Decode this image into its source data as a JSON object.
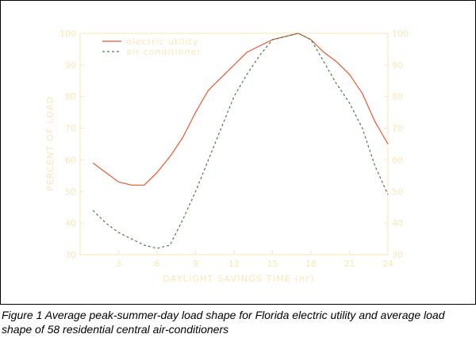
{
  "figure_caption": "Figure 1   Average peak-summer-day load shape for Florida electric utility and average load shape of 58 residential central air-conditioners",
  "chart_data": {
    "type": "line",
    "title": "",
    "xlabel": "DAYLIGHT SAVINGS TIME (hr)",
    "ylabel": "PERCENT OF LOAD",
    "xlim": [
      0,
      24
    ],
    "ylim": [
      30,
      100
    ],
    "x_ticks": [
      3,
      6,
      9,
      12,
      15,
      18,
      21,
      24
    ],
    "y_ticks": [
      30,
      40,
      50,
      60,
      70,
      80,
      90,
      100
    ],
    "legend_position": "top-left",
    "axis_color": "#fae6b4",
    "grid": false,
    "series": [
      {
        "name": "electric utility",
        "style": "solid",
        "color": "#e8572e",
        "x": [
          1,
          2,
          3,
          4,
          5,
          6,
          7,
          8,
          9,
          10,
          11,
          12,
          13,
          14,
          15,
          16,
          17,
          18,
          19,
          20,
          21,
          22,
          23,
          24
        ],
        "values": [
          59,
          56,
          53,
          52,
          52,
          56,
          61,
          67,
          75,
          82,
          86,
          90,
          94,
          96,
          98,
          99,
          100,
          98,
          94,
          91,
          87,
          81,
          72,
          65
        ]
      },
      {
        "name": "air-conditioner",
        "style": "dashed",
        "color": "#4a7a4a",
        "x": [
          1,
          2,
          3,
          4,
          5,
          6,
          7,
          8,
          9,
          10,
          11,
          12,
          13,
          14,
          15,
          16,
          17,
          18,
          19,
          20,
          21,
          22,
          23,
          24
        ],
        "values": [
          44,
          40,
          37,
          35,
          33,
          32,
          33,
          41,
          50,
          60,
          70,
          80,
          87,
          93,
          98,
          99,
          100,
          98,
          91,
          84,
          78,
          70,
          58,
          49
        ]
      }
    ]
  }
}
